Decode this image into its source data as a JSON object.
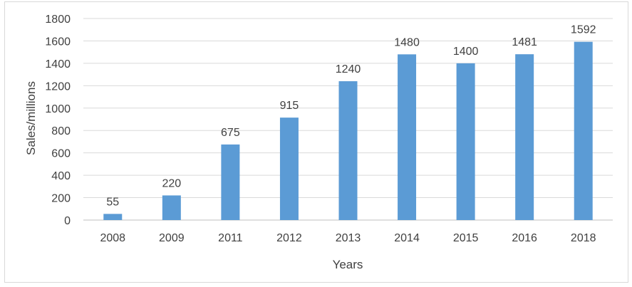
{
  "chart_data": {
    "type": "bar",
    "categories": [
      "2008",
      "2009",
      "2011",
      "2012",
      "2013",
      "2014",
      "2015",
      "2016",
      "2018"
    ],
    "values": [
      55,
      220,
      675,
      915,
      1240,
      1480,
      1400,
      1481,
      1592
    ],
    "data_labels": [
      "55",
      "220",
      "675",
      "915",
      "1240",
      "1480",
      "1400",
      "1481",
      "1592"
    ],
    "yticks": [
      "0",
      "200",
      "400",
      "600",
      "800",
      "1000",
      "1200",
      "1400",
      "1600",
      "1800"
    ],
    "xlabel": "Years",
    "ylabel": "Sales/millions",
    "ylim": [
      0,
      1800
    ],
    "grid": true,
    "legend": "none",
    "bar_color": "#5b9bd5",
    "grid_color": "#d9d9d9"
  }
}
